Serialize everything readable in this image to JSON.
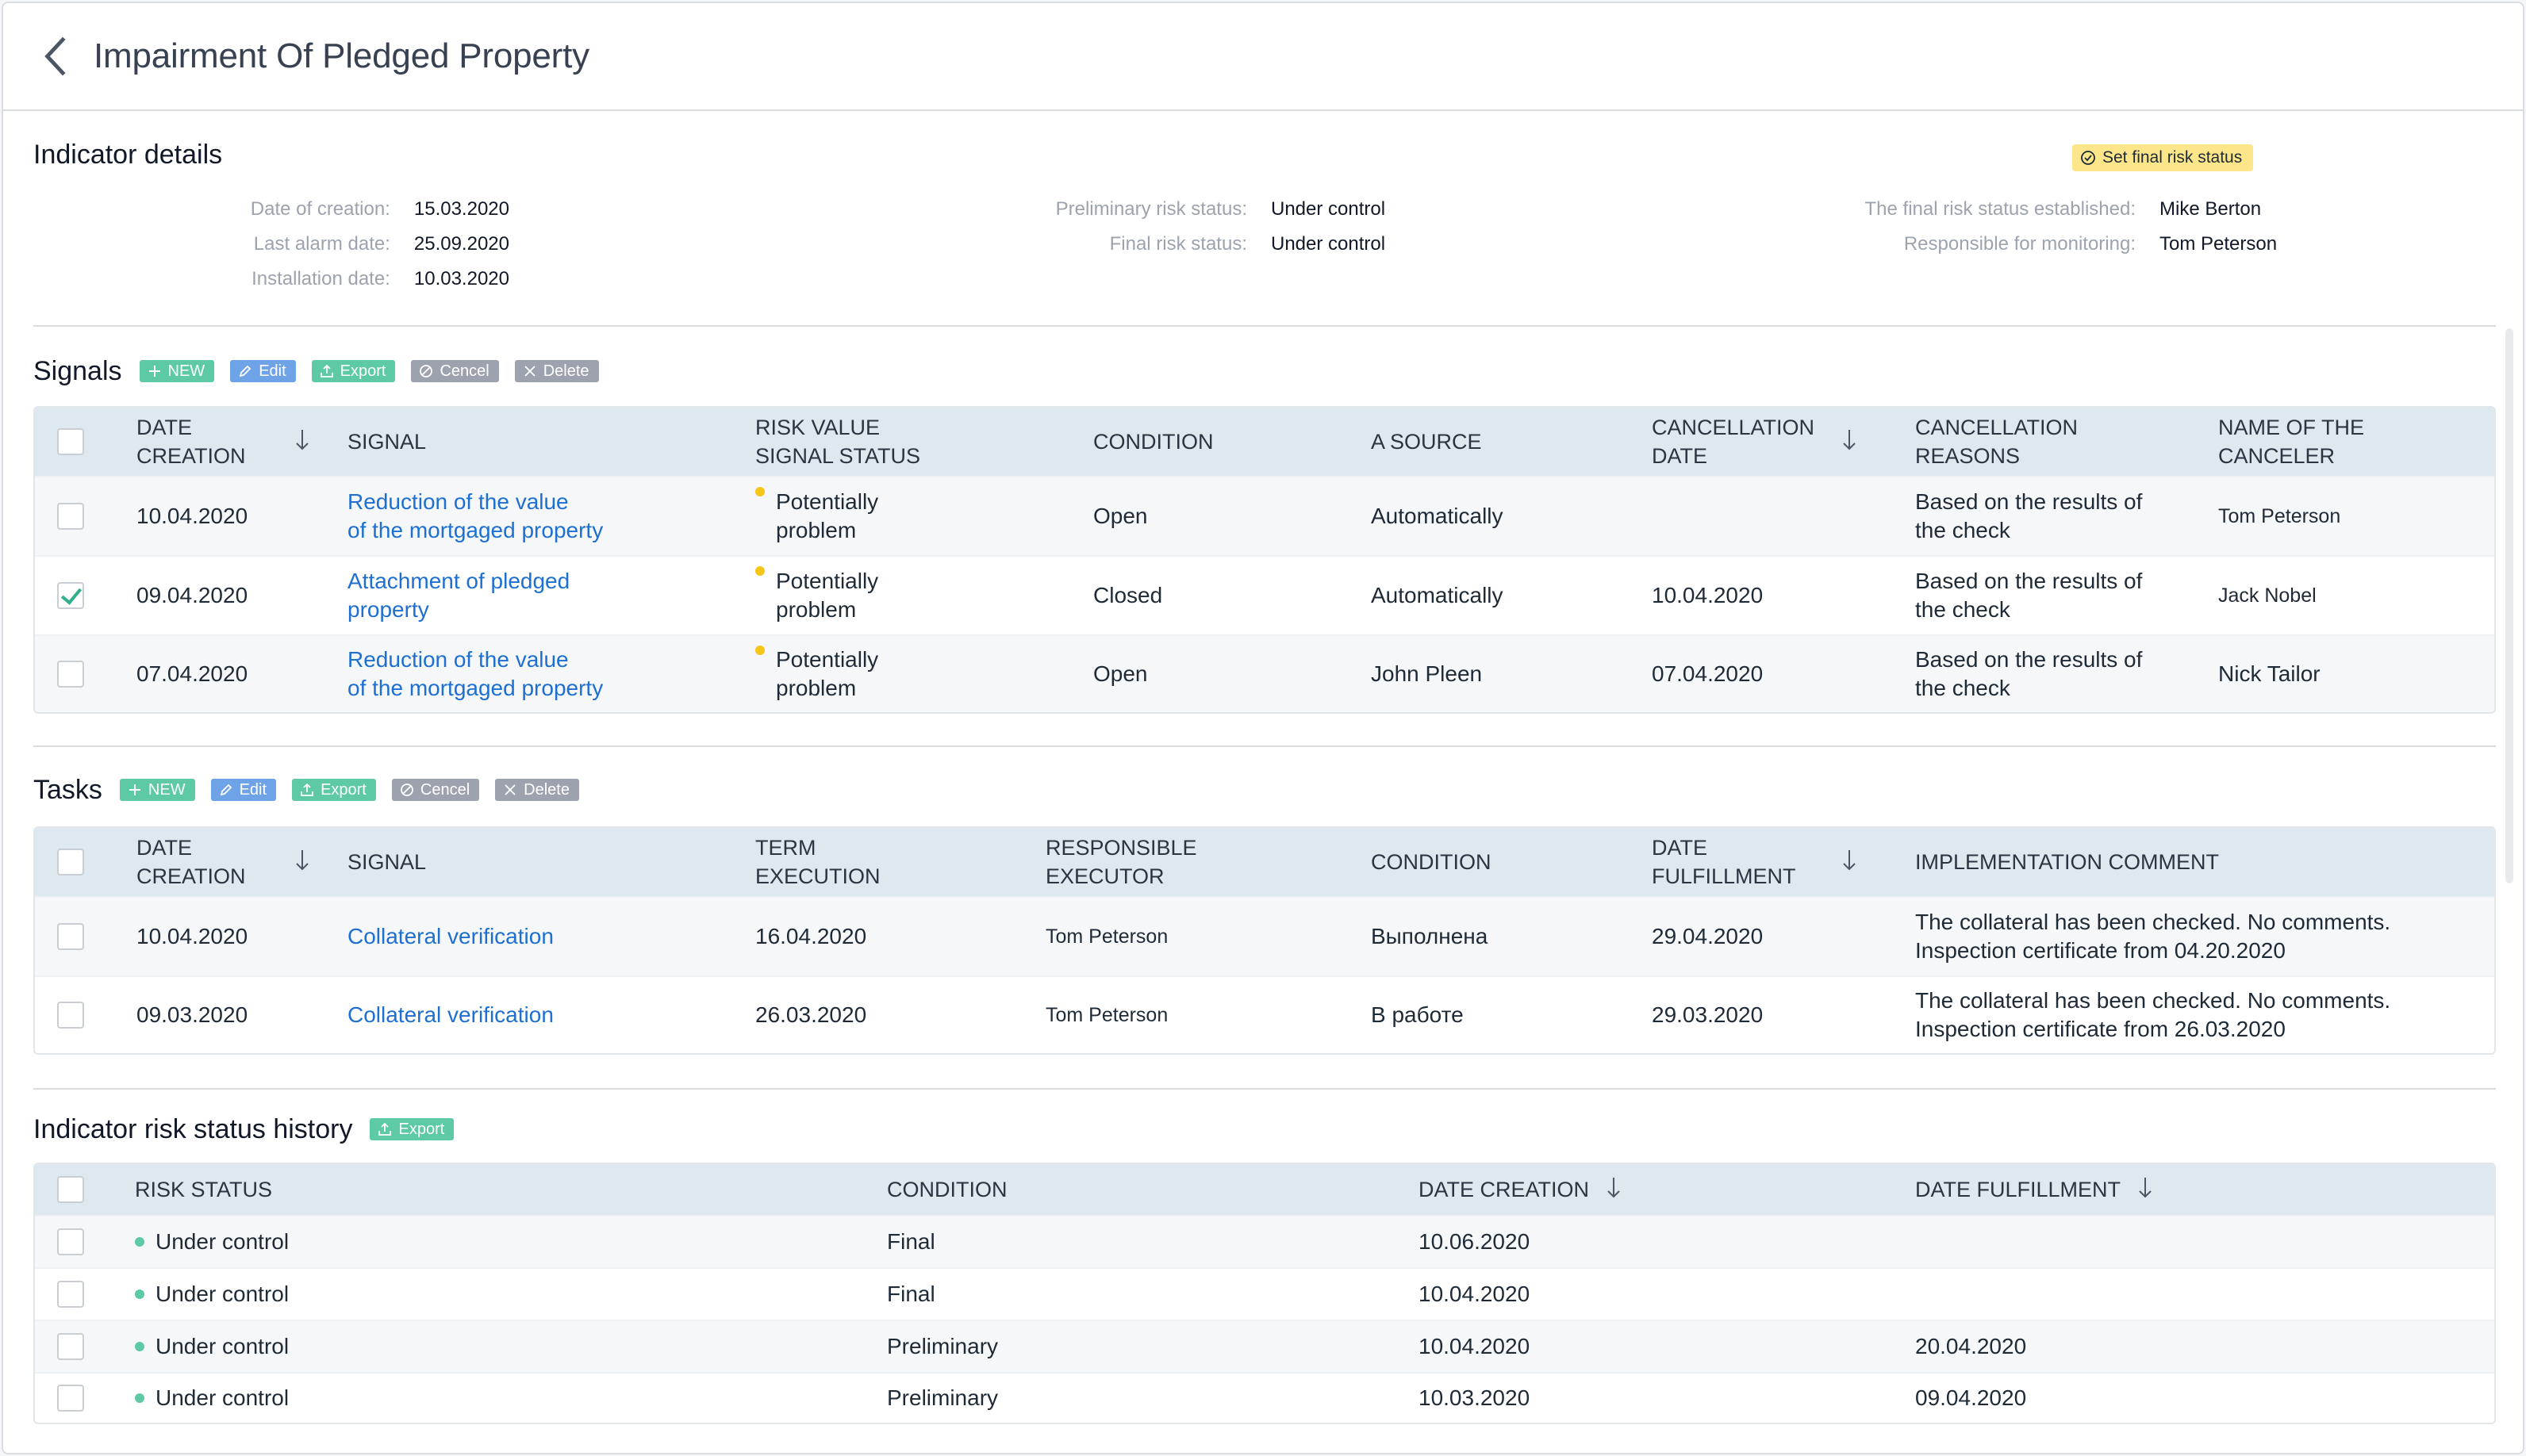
{
  "header": {
    "title": "Impairment Of Pledged Property"
  },
  "details": {
    "title": "Indicator details",
    "final_button": "Set final risk status",
    "col1": [
      {
        "label": "Date of creation:",
        "value": "15.03.2020"
      },
      {
        "label": "Last alarm date:",
        "value": "25.09.2020"
      },
      {
        "label": "Installation date:",
        "value": "10.03.2020"
      }
    ],
    "col2": [
      {
        "label": "Preliminary risk status:",
        "value": "Under control"
      },
      {
        "label": "Final risk status:",
        "value": "Under control"
      }
    ],
    "col3": [
      {
        "label": "The final risk status established:",
        "value": "Mike Berton"
      },
      {
        "label": "Responsible for monitoring:",
        "value": "Tom Peterson"
      }
    ]
  },
  "toolbar": {
    "new": "NEW",
    "edit": "Edit",
    "export": "Export",
    "cancel": "Cencel",
    "delete": "Delete"
  },
  "signals": {
    "title": "Signals",
    "headers": [
      "DATE",
      "CREATION",
      "SIGNAL",
      "RISK VALUE",
      "SIGNAL STATUS",
      "CONDITION",
      "A SOURCE",
      "CANCELLATION",
      "DATE",
      "CANCELLATION",
      "REASONS",
      "NAME OF THE",
      "CANCELER"
    ],
    "rows": [
      {
        "date": "10.04.2020",
        "signal1": "Reduction of the value",
        "signal2": "of the mortgaged property",
        "risk1": "Potentially",
        "risk2": "problem",
        "condition": "Open",
        "source": "Automatically",
        "cancel_date": "",
        "reason1": "Based on the results of",
        "reason2": "the check",
        "canceler": "Tom Peterson",
        "checked": false
      },
      {
        "date": "09.04.2020",
        "signal1": "Attachment of pledged",
        "signal2": "property",
        "risk1": "Potentially",
        "risk2": "problem",
        "condition": "Closed",
        "source": "Automatically",
        "cancel_date": "10.04.2020",
        "reason1": "Based on the results of",
        "reason2": "the check",
        "canceler": "Jack Nobel",
        "checked": true
      },
      {
        "date": "07.04.2020",
        "signal1": "Reduction of the value",
        "signal2": "of the mortgaged property",
        "risk1": "Potentially",
        "risk2": "problem",
        "condition": "Open",
        "source": "John Pleen",
        "cancel_date": "07.04.2020",
        "reason1": "Based on the results of",
        "reason2": "the check",
        "canceler": "Nick Tailor",
        "checked": false
      }
    ]
  },
  "tasks": {
    "title": "Tasks",
    "headers": [
      "DATE",
      "CREATION",
      "SIGNAL",
      "TERM",
      "EXECUTION",
      "RESPONSIBLE",
      "EXECUTOR",
      "CONDITION",
      "DATE",
      "FULFILLMENT",
      "IMPLEMENTATION COMMENT"
    ],
    "rows": [
      {
        "date": "10.04.2020",
        "signal": "Collateral verification",
        "term": "16.04.2020",
        "executor": "Tom Peterson",
        "condition": "Выполнена",
        "fulfillment": "29.04.2020",
        "comment1": "The collateral has been checked. No comments.",
        "comment2": "Inspection certificate from 04.20.2020"
      },
      {
        "date": "09.03.2020",
        "signal": "Collateral verification",
        "term": "26.03.2020",
        "executor": "Tom Peterson",
        "condition": "В работе",
        "fulfillment": "29.03.2020",
        "comment1": "The collateral has been checked. No comments.",
        "comment2": "Inspection certificate from 26.03.2020"
      }
    ]
  },
  "history": {
    "title": "Indicator risk status history",
    "headers": [
      "RISK STATUS",
      "CONDITION",
      "DATE CREATION",
      "DATE FULFILLMENT"
    ],
    "rows": [
      {
        "status": "Under control",
        "condition": "Final",
        "created": "10.06.2020",
        "fulfilled": ""
      },
      {
        "status": "Under control",
        "condition": "Final",
        "created": "10.04.2020",
        "fulfilled": ""
      },
      {
        "status": "Under control",
        "condition": "Preliminary",
        "created": "10.04.2020",
        "fulfilled": "20.04.2020"
      },
      {
        "status": "Under control",
        "condition": "Preliminary",
        "created": "10.03.2020",
        "fulfilled": "09.04.2020"
      }
    ]
  }
}
